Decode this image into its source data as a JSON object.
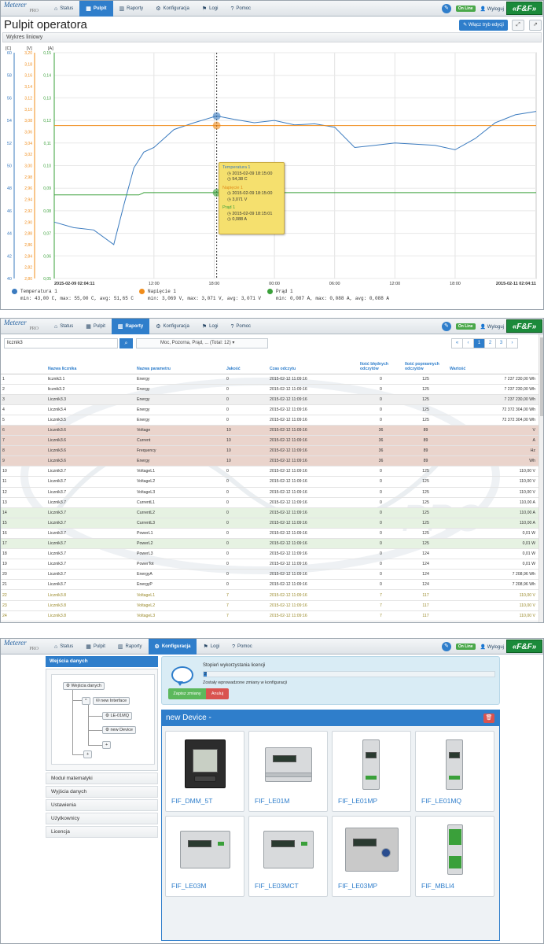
{
  "nav": {
    "logo_line1": "Meterer",
    "logo_line2": "PRO",
    "items": [
      {
        "icon": "home-icon",
        "label": "Status"
      },
      {
        "icon": "grid-icon",
        "label": "Pulpit"
      },
      {
        "icon": "bar-chart-icon",
        "label": "Raporty"
      },
      {
        "icon": "gear-icon",
        "label": "Konfiguracja"
      },
      {
        "icon": "flag-icon",
        "label": "Logi"
      },
      {
        "icon": "help-icon",
        "label": "Pomoc"
      }
    ],
    "online": "On Line",
    "logout": "Wyloguj",
    "brand": "«F&F»"
  },
  "screen1": {
    "title": "Pulpit operatora",
    "edit_button": "Włącz tryb edycji",
    "panel_title": "Wykres liniowy",
    "axis_units": [
      "[C]",
      "[V]",
      "[A]"
    ],
    "y_ticks_c": [
      "60",
      "58",
      "56",
      "54",
      "52",
      "50",
      "48",
      "46",
      "44",
      "42",
      "40"
    ],
    "y_ticks_v": [
      "3,20",
      "3,18",
      "3,16",
      "3,14",
      "3,12",
      "3,10",
      "3,08",
      "3,06",
      "3,04",
      "3,02",
      "3,00",
      "2,98",
      "2,96",
      "2,94",
      "2,92",
      "2,90",
      "2,88",
      "2,86",
      "2,84",
      "2,82",
      "2,80"
    ],
    "y_ticks_a": [
      "0,15",
      "0,14",
      "0,13",
      "0,12",
      "0,11",
      "0,10",
      "0,09",
      "0,08",
      "0,07",
      "0,06",
      "0,05"
    ],
    "x_ticks": [
      "2015-02-09 02:04:11",
      "12:00",
      "18:00",
      "00:00",
      "06:00",
      "12:00",
      "18:00",
      "2015-02-11 02:04:11"
    ],
    "legend": [
      {
        "name": "Temperatura 1",
        "color": "#3b7bbf",
        "stats": "min: 43,00 C, max: 55,00 C, avg: 51,65 C"
      },
      {
        "name": "Napięcie 1",
        "color": "#f08c1a",
        "stats": "min: 3,069 V, max: 3,071 V, avg: 3,071 V"
      },
      {
        "name": "Prąd 1",
        "color": "#3aa03a",
        "stats": "min: 0,087 A, max: 0,088 A, avg: 0,088 A"
      }
    ],
    "tooltip": [
      {
        "name": "Temperatura 1",
        "time": "2015-02-09 18:15:00",
        "value": "54,38 C"
      },
      {
        "name": "Napięcie 1",
        "time": "2015-02-09 18:15:00",
        "value": "3,071 V"
      },
      {
        "name": "Prąd 1",
        "time": "2015-02-09 18:15:01",
        "value": "0,088 A"
      }
    ]
  },
  "chart_data": {
    "type": "line",
    "title": "Wykres liniowy",
    "x_range": [
      "2015-02-09 02:04:11",
      "2015-02-11 02:04:11"
    ],
    "x_ticks": [
      "12:00",
      "18:00",
      "00:00",
      "06:00",
      "12:00",
      "18:00"
    ],
    "axes": [
      {
        "unit": "[C]",
        "ylim": [
          40,
          60
        ]
      },
      {
        "unit": "[V]",
        "ylim": [
          2.8,
          3.2
        ]
      },
      {
        "unit": "[A]",
        "ylim": [
          0.05,
          0.15
        ]
      }
    ],
    "series": [
      {
        "name": "Temperatura 1",
        "axis": "[C]",
        "color": "#3b7bbf",
        "x": [
          "2015-02-09 02:04",
          "2015-02-09 04:00",
          "2015-02-09 06:00",
          "2015-02-09 08:00",
          "2015-02-09 09:00",
          "2015-02-09 10:00",
          "2015-02-09 11:00",
          "2015-02-09 12:00",
          "2015-02-09 14:00",
          "2015-02-09 16:00",
          "2015-02-09 18:15",
          "2015-02-09 20:00",
          "2015-02-09 22:00",
          "2015-02-10 00:00",
          "2015-02-10 02:00",
          "2015-02-10 04:00",
          "2015-02-10 06:00",
          "2015-02-10 08:00",
          "2015-02-10 10:00",
          "2015-02-10 12:00",
          "2015-02-10 14:00",
          "2015-02-10 16:00",
          "2015-02-10 18:00",
          "2015-02-10 20:00",
          "2015-02-10 22:00",
          "2015-02-11 00:00",
          "2015-02-11 02:04"
        ],
        "values": [
          45.0,
          44.5,
          44.3,
          43.0,
          46.5,
          49.8,
          51.2,
          51.6,
          53.2,
          53.8,
          54.4,
          54.1,
          53.8,
          54.0,
          53.6,
          53.7,
          53.4,
          51.6,
          51.8,
          52.0,
          51.9,
          51.8,
          51.4,
          52.4,
          53.8,
          54.5,
          54.8
        ]
      },
      {
        "name": "Napięcie 1",
        "axis": "[V]",
        "color": "#f08c1a",
        "x": [
          "2015-02-09 02:04",
          "2015-02-11 02:04"
        ],
        "values": [
          3.071,
          3.071
        ]
      },
      {
        "name": "Prąd 1",
        "axis": "[A]",
        "color": "#3aa03a",
        "x": [
          "2015-02-09 02:04",
          "2015-02-09 10:30",
          "2015-02-09 11:00",
          "2015-02-11 02:04"
        ],
        "values": [
          0.087,
          0.087,
          0.088,
          0.088
        ]
      }
    ]
  },
  "screen2": {
    "search_value": "licznik3",
    "combo_text": "Moc, Pozorna,   Prąd, ... (Total: 12)",
    "pager": [
      "«",
      "‹",
      "1",
      "2",
      "3",
      "›"
    ],
    "columns": [
      "Nazwa licznika",
      "Nazwa parametru",
      "Jakość",
      "Czas odczytu",
      "Ilość błędnych odczytów",
      "Ilość poprawnych odczytów",
      "Wartość"
    ],
    "rows": [
      {
        "n": "1",
        "meter": "licznik3.1",
        "param": "Energy",
        "q": "0",
        "time": "2015-02-12 11:09:16",
        "bad": "0",
        "good": "125",
        "val": "7 237 230,00 Wh",
        "cls": ""
      },
      {
        "n": "2",
        "meter": "licznik3.2",
        "param": "Energy",
        "q": "0",
        "time": "2015-02-12 11:09:16",
        "bad": "0",
        "good": "125",
        "val": "7 237 230,00 Wh",
        "cls": ""
      },
      {
        "n": "3",
        "meter": "Licznik3.3",
        "param": "Energy",
        "q": "0",
        "time": "2015-02-12 11:09:16",
        "bad": "0",
        "good": "125",
        "val": "7 237 230,00 Wh",
        "cls": "g"
      },
      {
        "n": "4",
        "meter": "Licznik3.4",
        "param": "Energy",
        "q": "0",
        "time": "2015-02-12 11:09:16",
        "bad": "0",
        "good": "125",
        "val": "72 372 304,00 Wh",
        "cls": ""
      },
      {
        "n": "5",
        "meter": "Licznik3.5",
        "param": "Energy",
        "q": "0",
        "time": "2015-02-12 11:09:16",
        "bad": "0",
        "good": "125",
        "val": "72 372 304,00 Wh",
        "cls": ""
      },
      {
        "n": "6",
        "meter": "Licznik3.6",
        "param": "Voltage",
        "q": "10",
        "time": "2015-02-12 11:09:16",
        "bad": "36",
        "good": "89",
        "val": "V",
        "cls": "r"
      },
      {
        "n": "7",
        "meter": "Licznik3.6",
        "param": "Current",
        "q": "10",
        "time": "2015-02-12 11:09:16",
        "bad": "36",
        "good": "89",
        "val": "A",
        "cls": "r"
      },
      {
        "n": "8",
        "meter": "Licznik3.6",
        "param": "Frequency",
        "q": "10",
        "time": "2015-02-12 11:09:16",
        "bad": "36",
        "good": "89",
        "val": "Hz",
        "cls": "r"
      },
      {
        "n": "9",
        "meter": "Licznik3.6",
        "param": "Energy",
        "q": "10",
        "time": "2015-02-12 11:09:16",
        "bad": "36",
        "good": "89",
        "val": "Wh",
        "cls": "r"
      },
      {
        "n": "10",
        "meter": "Licznik3.7",
        "param": "VoltageL1",
        "q": "0",
        "time": "2015-02-12 11:09:16",
        "bad": "0",
        "good": "125",
        "val": "110,00 V",
        "cls": ""
      },
      {
        "n": "11",
        "meter": "Licznik3.7",
        "param": "VoltageL2",
        "q": "0",
        "time": "2015-02-12 11:09:16",
        "bad": "0",
        "good": "125",
        "val": "110,00 V",
        "cls": ""
      },
      {
        "n": "12",
        "meter": "Licznik3.7",
        "param": "VoltageL3",
        "q": "0",
        "time": "2015-02-12 11:09:16",
        "bad": "0",
        "good": "125",
        "val": "110,00 V",
        "cls": ""
      },
      {
        "n": "13",
        "meter": "Licznik3.7",
        "param": "CurrentL1",
        "q": "0",
        "time": "2015-02-12 11:09:16",
        "bad": "0",
        "good": "125",
        "val": "110,00 A",
        "cls": ""
      },
      {
        "n": "14",
        "meter": "Licznik3.7",
        "param": "CurrentL2",
        "q": "0",
        "time": "2015-02-12 11:09:16",
        "bad": "0",
        "good": "125",
        "val": "110,00 A",
        "cls": "gr"
      },
      {
        "n": "15",
        "meter": "Licznik3.7",
        "param": "CurrentL3",
        "q": "0",
        "time": "2015-02-12 11:09:16",
        "bad": "0",
        "good": "125",
        "val": "110,00 A",
        "cls": "gr"
      },
      {
        "n": "16",
        "meter": "Licznik3.7",
        "param": "PowerL1",
        "q": "0",
        "time": "2015-02-12 11:09:16",
        "bad": "0",
        "good": "125",
        "val": "0,01 W",
        "cls": ""
      },
      {
        "n": "17",
        "meter": "Licznik3.7",
        "param": "PowerL2",
        "q": "0",
        "time": "2015-02-12 11:09:16",
        "bad": "0",
        "good": "125",
        "val": "0,01 W",
        "cls": "gr"
      },
      {
        "n": "18",
        "meter": "Licznik3.7",
        "param": "PowerL3",
        "q": "0",
        "time": "2015-02-12 11:09:16",
        "bad": "0",
        "good": "124",
        "val": "0,01 W",
        "cls": ""
      },
      {
        "n": "19",
        "meter": "Licznik3.7",
        "param": "PowerTot",
        "q": "0",
        "time": "2015-02-12 11:09:16",
        "bad": "0",
        "good": "124",
        "val": "0,01 W",
        "cls": ""
      },
      {
        "n": "20",
        "meter": "Licznik3.7",
        "param": "EnergyA",
        "q": "0",
        "time": "2015-02-12 11:09:16",
        "bad": "0",
        "good": "124",
        "val": "7 208,96 Wh",
        "cls": ""
      },
      {
        "n": "21",
        "meter": "Licznik3.7",
        "param": "EnergyP",
        "q": "0",
        "time": "2015-02-12 11:09:16",
        "bad": "0",
        "good": "124",
        "val": "7 208,96 Wh",
        "cls": ""
      },
      {
        "n": "22",
        "meter": "Licznik3.8",
        "param": "VoltageL1",
        "q": "7",
        "time": "2015-02-12 11:09:16",
        "bad": "7",
        "good": "117",
        "val": "110,00 V",
        "cls": "y"
      },
      {
        "n": "23",
        "meter": "Licznik3.8",
        "param": "VoltageL2",
        "q": "7",
        "time": "2015-02-12 11:09:16",
        "bad": "7",
        "good": "117",
        "val": "110,00 V",
        "cls": "y"
      },
      {
        "n": "24",
        "meter": "Licznik3.8",
        "param": "VoltageL3",
        "q": "7",
        "time": "2015-02-12 11:09:16",
        "bad": "7",
        "good": "117",
        "val": "110,00 V",
        "cls": "y"
      },
      {
        "n": "25",
        "meter": "Licznik3.8",
        "param": "CurrentL1",
        "q": "7",
        "time": "2015-02-12 11:09:16",
        "bad": "7",
        "good": "117",
        "val": "110,00 A",
        "cls": "y"
      }
    ]
  },
  "screen3": {
    "sidebar_header": "Wejścia danych",
    "tree": {
      "root": "Wejścia danych",
      "iface": "new Interface",
      "dev1": "LE-01MQ",
      "dev2": "new Device",
      "add": "+"
    },
    "sidebar_items": [
      "Moduł matematyki",
      "Wyjścia danych",
      "Ustawienia",
      "Użytkownicy",
      "Licencja"
    ],
    "license_title": "Stopień wykorzystania licencji",
    "license_value": "2",
    "license_fraction": 0.01,
    "license_note": "Zostały wprowadzone zmiany w konfiguracji",
    "save_button": "Zapisz zmiany",
    "cancel_button": "Anuluj",
    "device_header": "new Device -",
    "devices": [
      "FIF_DMM_5T",
      "FIF_LE01M",
      "FIF_LE01MP",
      "FIF_LE01MQ",
      "FIF_LE03M",
      "FIF_LE03MCT",
      "FIF_LE03MP",
      "FIF_MBLI4"
    ]
  }
}
